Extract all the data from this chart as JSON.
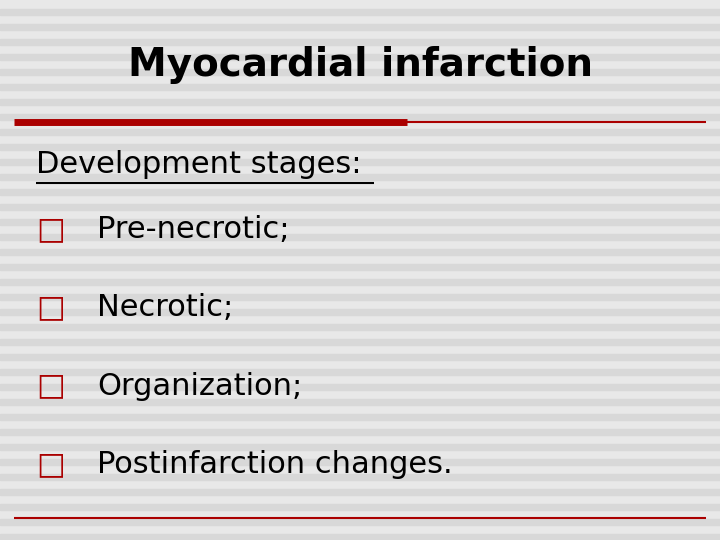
{
  "title": "Myocardial infarction",
  "title_fontsize": 28,
  "title_color": "#000000",
  "title_bold": true,
  "subtitle": "Development stages:",
  "subtitle_fontsize": 22,
  "items": [
    "Pre-necrotic;",
    "Necrotic;",
    "Organization;",
    "Postinfarction changes."
  ],
  "item_fontsize": 22,
  "item_color": "#000000",
  "bullet_color": "#aa0000",
  "bullet_char": "□",
  "background_color": "#e8e8e8",
  "stripe_color": "#d8d8d8",
  "title_line_left_color": "#aa0000",
  "title_line_right_color": "#aa0000",
  "bottom_line_color": "#aa0000"
}
